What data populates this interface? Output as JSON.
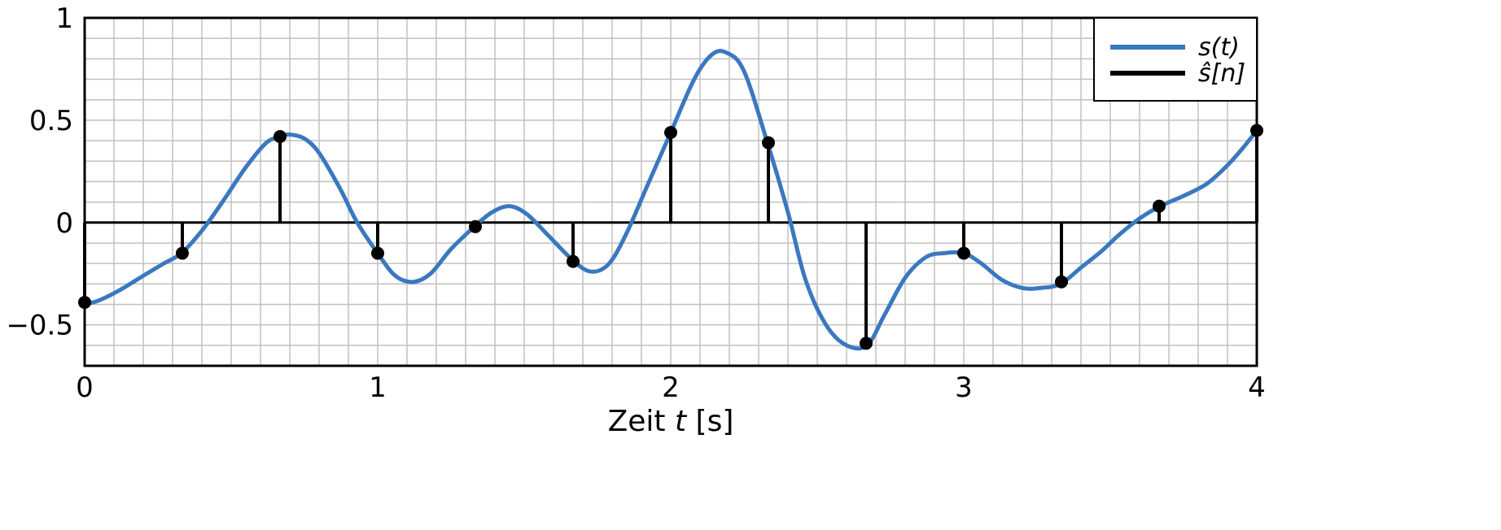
{
  "chart_data": {
    "type": "line",
    "title": "",
    "xlabel": "Zeit",
    "xlabel_var": "t",
    "xlabel_unit": "[s]",
    "ylabel": "",
    "xlim": [
      0,
      4
    ],
    "ylim": [
      -0.7,
      1
    ],
    "x_ticks": [
      0,
      1,
      2,
      3,
      4
    ],
    "x_tick_labels": [
      "0",
      "1",
      "2",
      "3",
      "4"
    ],
    "y_ticks": [
      -0.5,
      0,
      0.5,
      1
    ],
    "y_tick_labels": [
      "−0.5",
      "0",
      "0.5",
      "1"
    ],
    "grid": true,
    "legend_position": "top-right",
    "colors": {
      "continuous": "#3a78c0",
      "samples": "#000000",
      "grid": "#c0c0c0"
    },
    "series": [
      {
        "name": "s(t)",
        "kind": "line",
        "x": [
          0,
          0.05,
          0.12,
          0.2,
          0.27,
          0.33,
          0.4,
          0.47,
          0.55,
          0.62,
          0.67,
          0.7,
          0.75,
          0.8,
          0.87,
          0.93,
          1.0,
          1.06,
          1.12,
          1.18,
          1.25,
          1.33,
          1.39,
          1.45,
          1.51,
          1.58,
          1.67,
          1.73,
          1.79,
          1.85,
          1.92,
          2.0,
          2.08,
          2.14,
          2.19,
          2.25,
          2.33,
          2.4,
          2.46,
          2.53,
          2.6,
          2.67,
          2.73,
          2.8,
          2.87,
          2.93,
          3.0,
          3.06,
          3.13,
          3.2,
          3.26,
          3.33,
          3.4,
          3.47,
          3.53,
          3.6,
          3.67,
          3.75,
          3.83,
          3.9,
          3.95,
          4.0
        ],
        "y": [
          -0.4,
          -0.38,
          -0.33,
          -0.26,
          -0.2,
          -0.15,
          -0.04,
          0.1,
          0.27,
          0.39,
          0.42,
          0.43,
          0.41,
          0.34,
          0.17,
          0.0,
          -0.15,
          -0.26,
          -0.29,
          -0.25,
          -0.13,
          -0.02,
          0.05,
          0.08,
          0.04,
          -0.06,
          -0.19,
          -0.24,
          -0.2,
          -0.05,
          0.18,
          0.44,
          0.7,
          0.82,
          0.83,
          0.74,
          0.39,
          0.05,
          -0.28,
          -0.5,
          -0.6,
          -0.6,
          -0.45,
          -0.27,
          -0.17,
          -0.15,
          -0.15,
          -0.2,
          -0.28,
          -0.32,
          -0.32,
          -0.3,
          -0.22,
          -0.14,
          -0.06,
          0.02,
          0.08,
          0.13,
          0.19,
          0.28,
          0.36,
          0.45
        ]
      },
      {
        "name": "ŝ[n]",
        "kind": "stem",
        "x": [
          0,
          0.3333,
          0.6667,
          1.0,
          1.3333,
          1.6667,
          2.0,
          2.3333,
          2.6667,
          3.0,
          3.3333,
          3.6667,
          4.0
        ],
        "y": [
          -0.39,
          -0.15,
          0.42,
          -0.15,
          -0.02,
          -0.19,
          0.44,
          0.39,
          -0.59,
          -0.15,
          -0.29,
          0.08,
          0.45
        ]
      }
    ]
  }
}
